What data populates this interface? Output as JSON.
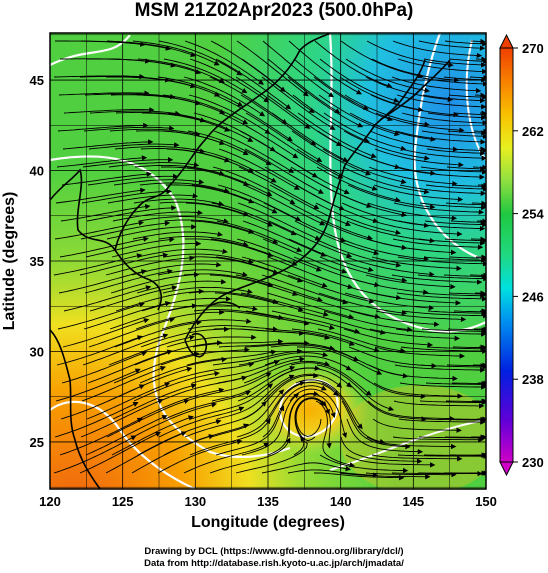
{
  "title": "MSM 21Z02Apr2023 (500.0hPa)",
  "x_axis": {
    "title": "Longitude (degrees)",
    "ticks": [
      "120",
      "125",
      "130",
      "135",
      "140",
      "145",
      "150"
    ],
    "range": [
      120,
      150
    ]
  },
  "y_axis": {
    "title": "Latitude  (degrees)",
    "ticks": [
      "25",
      "30",
      "35",
      "40",
      "45"
    ],
    "range": [
      22.4,
      47.6
    ]
  },
  "colorbar": {
    "ticks": [
      "230",
      "238",
      "246",
      "254",
      "262",
      "270"
    ],
    "range": [
      230,
      270
    ],
    "colors": [
      "#d000c8",
      "#6000d8",
      "#0020e0",
      "#0090f0",
      "#00e0e0",
      "#20d880",
      "#20c840",
      "#90e040",
      "#e8f020",
      "#f8c000",
      "#f88000",
      "#f04000"
    ]
  },
  "credits": {
    "line1": "Drawing by DCL (https://www.gfd-dennou.org/library/dcl/)",
    "line2": "Data from http://database.rish.kyoto-u.ac.jp/arch/jmadata/"
  }
}
